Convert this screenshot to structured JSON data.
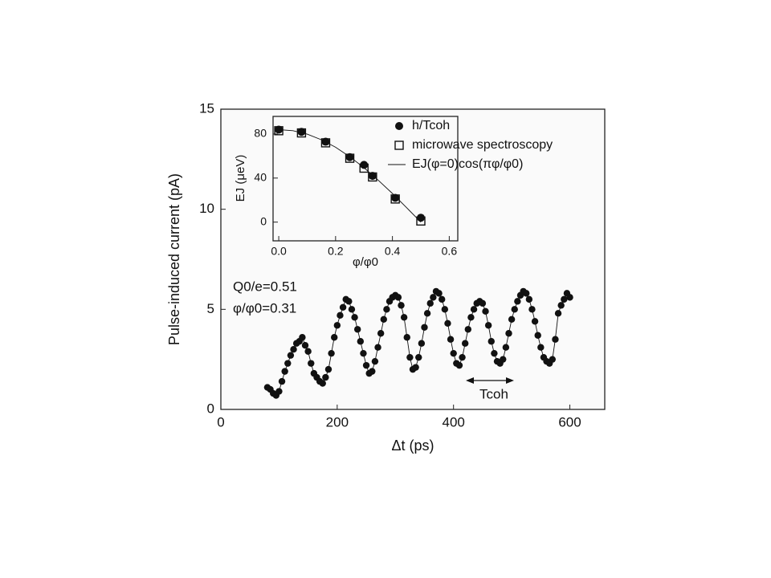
{
  "chart_data": [
    {
      "type": "scatter",
      "xlabel": "Δt (ps)",
      "ylabel": "Pulse-induced current (pA)",
      "xlim": [
        0,
        660
      ],
      "ylim": [
        0,
        15
      ],
      "xticks": [
        0,
        200,
        400,
        600
      ],
      "yticks": [
        0,
        5,
        10,
        15
      ],
      "annotations": [
        "Q0/e=0.51",
        "φ/φ0=0.31",
        "Tcoh"
      ],
      "series": [
        {
          "marker": "circle",
          "line": true,
          "color": "#111111",
          "x": [
            80,
            85,
            90,
            95,
            100,
            105,
            110,
            115,
            120,
            125,
            130,
            135,
            140,
            145,
            150,
            155,
            160,
            165,
            170,
            175,
            180,
            185,
            190,
            195,
            200,
            205,
            210,
            215,
            220,
            225,
            230,
            235,
            240,
            245,
            250,
            255,
            260,
            265,
            270,
            275,
            280,
            285,
            290,
            295,
            300,
            305,
            310,
            315,
            320,
            325,
            330,
            335,
            340,
            345,
            350,
            355,
            360,
            365,
            370,
            375,
            380,
            385,
            390,
            395,
            400,
            405,
            410,
            415,
            420,
            425,
            430,
            435,
            440,
            445,
            450,
            455,
            460,
            465,
            470,
            475,
            480,
            485,
            490,
            495,
            500,
            505,
            510,
            515,
            520,
            525,
            530,
            535,
            540,
            545,
            550,
            555,
            560,
            565,
            570,
            575,
            580,
            585,
            590,
            595,
            600
          ],
          "values": [
            1.1,
            1.0,
            0.8,
            0.7,
            0.9,
            1.4,
            1.9,
            2.3,
            2.7,
            3.0,
            3.3,
            3.4,
            3.6,
            3.2,
            2.9,
            2.3,
            1.8,
            1.6,
            1.4,
            1.3,
            1.6,
            2.0,
            2.8,
            3.6,
            4.2,
            4.7,
            5.1,
            5.5,
            5.4,
            5.0,
            4.6,
            4.0,
            3.4,
            2.8,
            2.2,
            1.8,
            1.9,
            2.4,
            3.1,
            3.8,
            4.5,
            5.0,
            5.4,
            5.6,
            5.7,
            5.6,
            5.2,
            4.6,
            3.6,
            2.6,
            2.0,
            2.1,
            2.6,
            3.3,
            4.1,
            4.8,
            5.3,
            5.6,
            5.9,
            5.8,
            5.5,
            5.0,
            4.3,
            3.5,
            2.8,
            2.3,
            2.2,
            2.6,
            3.3,
            4.0,
            4.6,
            5.0,
            5.3,
            5.4,
            5.3,
            4.9,
            4.2,
            3.4,
            2.8,
            2.4,
            2.3,
            2.5,
            3.1,
            3.8,
            4.5,
            5.0,
            5.4,
            5.7,
            5.9,
            5.8,
            5.5,
            5.0,
            4.4,
            3.7,
            3.1,
            2.6,
            2.4,
            2.3,
            2.5,
            3.5,
            4.8,
            5.2,
            5.5,
            5.8,
            5.6
          ]
        }
      ]
    },
    {
      "type": "scatter",
      "xlabel": "φ/φ0",
      "ylabel": "EJ (μeV)",
      "xlim": [
        -0.02,
        0.63
      ],
      "ylim": [
        -17,
        96
      ],
      "xticks": [
        {
          "value": 0,
          "label": "0.0"
        },
        0.2,
        0.4,
        0.6
      ],
      "yticks": [
        0,
        40,
        80
      ],
      "series": [
        {
          "name": "h/Tcoh",
          "marker": "circle",
          "line": false,
          "color": "#111111",
          "x": [
            0,
            0.08,
            0.165,
            0.25,
            0.3,
            0.33,
            0.41,
            0.5
          ],
          "values": [
            84,
            82,
            73,
            59,
            52,
            42,
            22,
            4
          ]
        },
        {
          "name": "microwave spectroscopy",
          "marker": "square",
          "line": false,
          "color": "#111111",
          "x": [
            0,
            0.08,
            0.165,
            0.25,
            0.3,
            0.33,
            0.41,
            0.5
          ],
          "values": [
            83,
            81,
            72,
            58,
            49,
            41,
            21,
            1
          ]
        },
        {
          "name": "EJ(φ=0)cos(πφ/φ0)",
          "marker": "none",
          "line": true,
          "color": "#111111",
          "x": [
            0,
            0.05,
            0.1,
            0.15,
            0.2,
            0.25,
            0.3,
            0.35,
            0.4,
            0.45,
            0.5
          ],
          "values": [
            84,
            83.0,
            79.9,
            74.8,
            68.0,
            59.4,
            49.4,
            38.1,
            26.0,
            13.1,
            0
          ]
        }
      ]
    }
  ]
}
